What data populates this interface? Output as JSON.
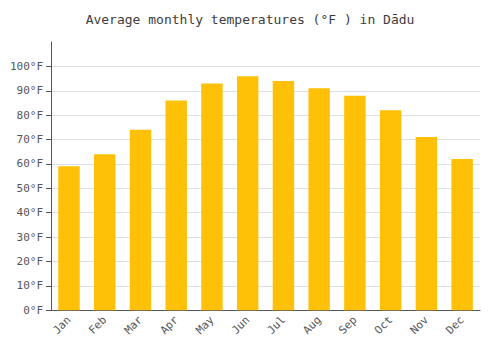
{
  "chart_data": {
    "type": "bar",
    "title": "Average monthly temperatures (°F ) in Dādu",
    "categories": [
      "Jan",
      "Feb",
      "Mar",
      "Apr",
      "May",
      "Jun",
      "Jul",
      "Aug",
      "Sep",
      "Oct",
      "Nov",
      "Dec"
    ],
    "values": [
      59,
      64,
      74,
      86,
      93,
      96,
      94,
      91,
      88,
      82,
      71,
      62
    ],
    "color": "#FFC107",
    "ylim": [
      0,
      110
    ],
    "yticks": [
      {
        "value": 0,
        "label": "0°F"
      },
      {
        "value": 10,
        "label": "10°F"
      },
      {
        "value": 20,
        "label": "20°F"
      },
      {
        "value": 30,
        "label": "30°F"
      },
      {
        "value": 40,
        "label": "40°F"
      },
      {
        "value": 50,
        "label": "50°F"
      },
      {
        "value": 60,
        "label": "60°F"
      },
      {
        "value": 70,
        "label": "70°F"
      },
      {
        "value": 80,
        "label": "80°F"
      },
      {
        "value": 90,
        "label": "90°F"
      },
      {
        "value": 100,
        "label": "100°F"
      }
    ],
    "grid": true
  }
}
